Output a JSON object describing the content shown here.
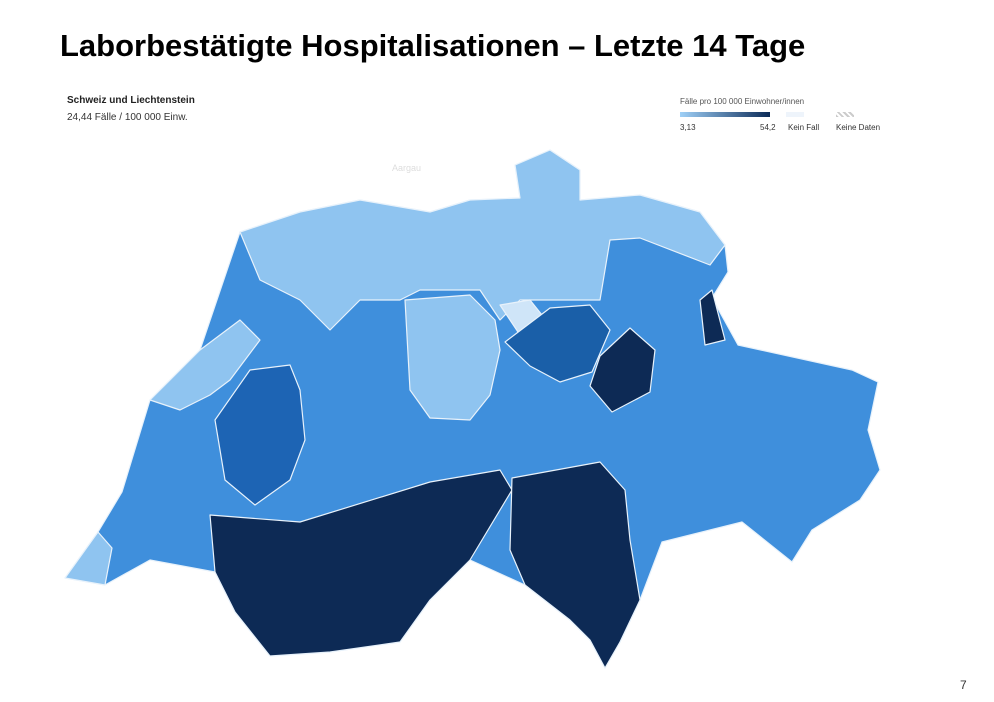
{
  "header": {
    "title": "Laborbestätigte Hospitalisationen – Letzte 14 Tage"
  },
  "summary": {
    "region": "Schweiz und Liechtenstein",
    "rate": "24,44 Fälle / 100 000 Einw."
  },
  "legend": {
    "title": "Fälle pro 100 000 Einwohner/innen",
    "min": "3,13",
    "max": "54,2",
    "no_case": "Kein Fall",
    "no_data": "Keine Daten"
  },
  "map": {
    "hover_label": "Aargau"
  },
  "footer": {
    "page": "7"
  }
}
